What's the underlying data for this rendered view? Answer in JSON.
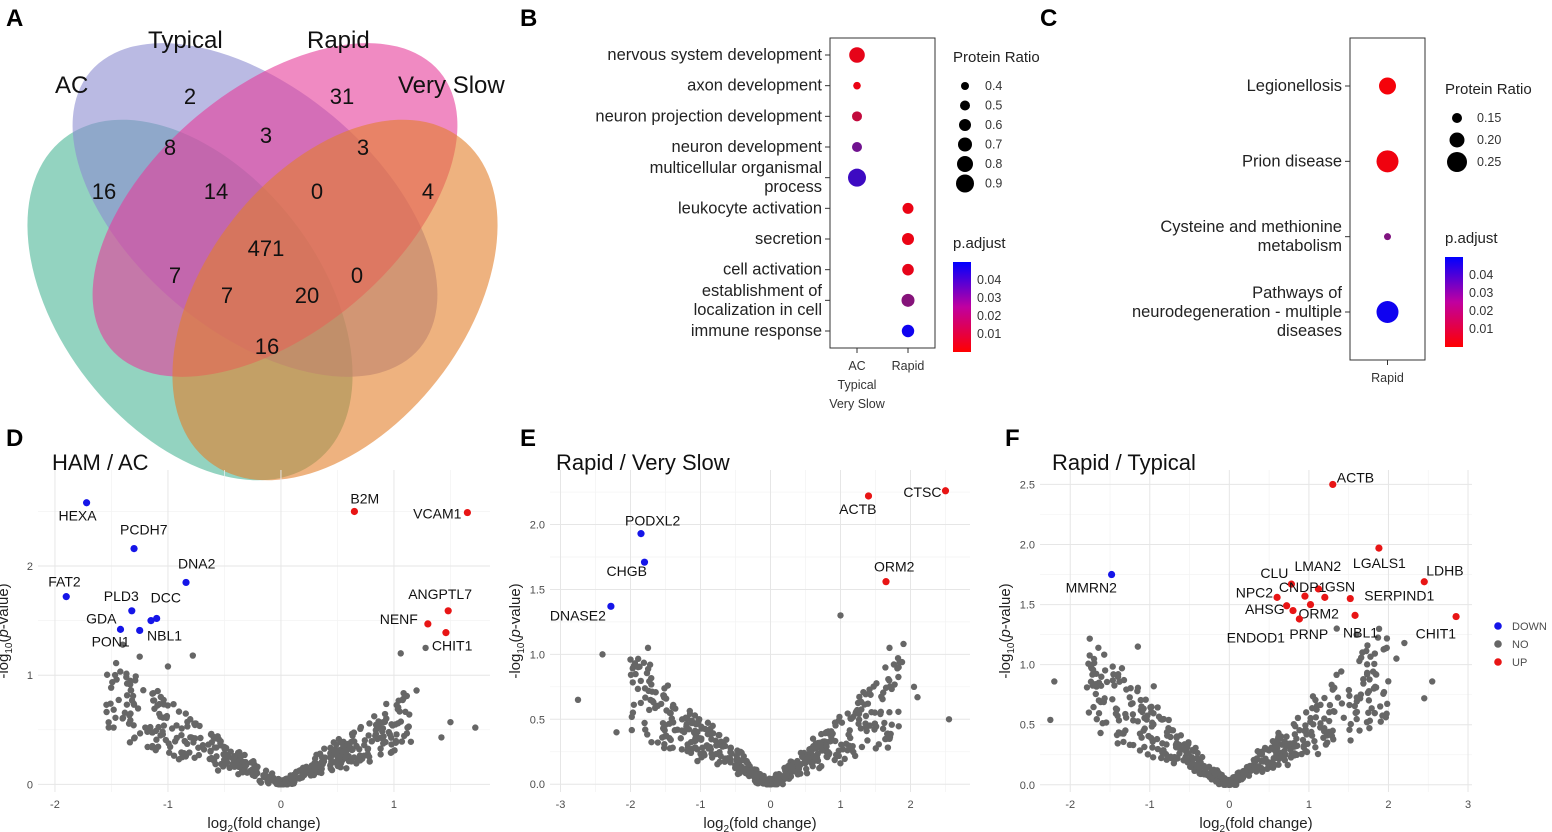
{
  "panel_labels": {
    "A": "A",
    "B": "B",
    "C": "C",
    "D": "D",
    "E": "E",
    "F": "F"
  },
  "colors": {
    "ac": "#4bb596",
    "typical": "#8c8cd0",
    "rapid": "#e63c9a",
    "very_slow": "#e27e2a",
    "down": "#1515e8",
    "up": "#e81515",
    "no": "#666666"
  },
  "venn": {
    "set_labels": {
      "ac": "AC",
      "typical": "Typical",
      "rapid": "Rapid",
      "very_slow": "Very Slow"
    },
    "regions": {
      "typical_only": "2",
      "rapid_only": "31",
      "ac_only": "16",
      "very_slow_only": "4",
      "ac_typical": "8",
      "typical_rapid": "3",
      "rapid_very_slow": "3",
      "ac_typical_rapid": "14",
      "typical_rapid_very_slow": "0",
      "all_four": "471",
      "ac_rapid": "7",
      "typical_very_slow": "0",
      "ac_rapid_very_slow": "7",
      "ac_typical_very_slow": "20",
      "ac_very_slow": "16"
    }
  },
  "chart_data": [
    {
      "panel": "B",
      "type": "dot",
      "x_categories": [
        "AC\nTypical\nVery Slow",
        "Rapid"
      ],
      "terms": [
        "nervous system development",
        "axon development",
        "neuron projection development",
        "neuron development",
        "multicellular organismal\nprocess",
        "leukocyte activation",
        "secretion",
        "cell activation",
        "establishment of\nlocalization in cell",
        "immune response"
      ],
      "points": [
        {
          "term": "nervous system development",
          "group": 0,
          "ratio": 0.78,
          "p_adjust": 0.005
        },
        {
          "term": "axon development",
          "group": 0,
          "ratio": 0.38,
          "p_adjust": 0.004
        },
        {
          "term": "neuron projection development",
          "group": 0,
          "ratio": 0.5,
          "p_adjust": 0.012
        },
        {
          "term": "neuron development",
          "group": 0,
          "ratio": 0.5,
          "p_adjust": 0.028
        },
        {
          "term": "multicellular organismal\nprocess",
          "group": 0,
          "ratio": 0.9,
          "p_adjust": 0.038
        },
        {
          "term": "leukocyte activation",
          "group": 1,
          "ratio": 0.55,
          "p_adjust": 0.004
        },
        {
          "term": "secretion",
          "group": 1,
          "ratio": 0.6,
          "p_adjust": 0.004
        },
        {
          "term": "cell activation",
          "group": 1,
          "ratio": 0.58,
          "p_adjust": 0.005
        },
        {
          "term": "establishment of\nlocalization in cell",
          "group": 1,
          "ratio": 0.65,
          "p_adjust": 0.024
        },
        {
          "term": "immune response",
          "group": 1,
          "ratio": 0.62,
          "p_adjust": 0.047
        }
      ],
      "size_legend": {
        "title": "Protein Ratio",
        "values": [
          0.4,
          0.5,
          0.6,
          0.7,
          0.8,
          0.9
        ],
        "labels": [
          "0.4",
          "0.5",
          "0.6",
          "0.7",
          "0.8",
          "0.9"
        ]
      },
      "color_legend": {
        "title": "p.adjust",
        "ticks": [
          "0.04",
          "0.03",
          "0.02",
          "0.01"
        ],
        "range": [
          0.0,
          0.05
        ]
      }
    },
    {
      "panel": "C",
      "type": "dot",
      "x_categories": [
        "Rapid"
      ],
      "terms": [
        "Legionellosis",
        "Prion disease",
        "Cysteine and methionine\nmetabolism",
        "Pathways of\nneurodegeneration - multiple\ndiseases"
      ],
      "points": [
        {
          "term": "Legionellosis",
          "group": 0,
          "ratio": 0.22,
          "p_adjust": 0.002
        },
        {
          "term": "Prion disease",
          "group": 0,
          "ratio": 0.27,
          "p_adjust": 0.003
        },
        {
          "term": "Cysteine and methionine\nmetabolism",
          "group": 0,
          "ratio": 0.12,
          "p_adjust": 0.025
        },
        {
          "term": "Pathways of\nneurodegeneration - multiple\ndiseases",
          "group": 0,
          "ratio": 0.27,
          "p_adjust": 0.047
        }
      ],
      "size_legend": {
        "title": "Protein Ratio",
        "values": [
          0.15,
          0.2,
          0.25
        ],
        "labels": [
          "0.15",
          "0.20",
          "0.25"
        ]
      },
      "color_legend": {
        "title": "p.adjust",
        "ticks": [
          "0.04",
          "0.03",
          "0.02",
          "0.01"
        ],
        "range": [
          0.0,
          0.05
        ]
      }
    },
    {
      "panel": "D",
      "type": "scatter",
      "title": "HAM / AC",
      "xlabel": "log2(fold change)",
      "ylabel": "-log10(p-value)",
      "xlim": [
        -2.15,
        1.85
      ],
      "ylim": [
        -0.07,
        2.88
      ],
      "x_ticks": [
        "-2",
        "-1",
        "0",
        "1"
      ],
      "y_ticks": [
        "0",
        "1",
        "2"
      ],
      "labeled": [
        {
          "gene": "HEXA",
          "x": -1.72,
          "y": 2.58,
          "status": "DOWN",
          "label_anchor": "end",
          "label_dx": 10,
          "label_dy": 18
        },
        {
          "gene": "PCDH7",
          "x": -1.3,
          "y": 2.16,
          "status": "DOWN",
          "label_anchor": "start",
          "label_dx": -14,
          "label_dy": -14
        },
        {
          "gene": "DNA2",
          "x": -0.84,
          "y": 1.85,
          "status": "DOWN",
          "label_anchor": "start",
          "label_dx": -8,
          "label_dy": -14
        },
        {
          "gene": "FAT2",
          "x": -1.9,
          "y": 1.72,
          "status": "DOWN",
          "label_anchor": "start",
          "label_dx": -18,
          "label_dy": -10
        },
        {
          "gene": "PLD3",
          "x": -1.32,
          "y": 1.59,
          "status": "DOWN",
          "label_anchor": "start",
          "label_dx": -28,
          "label_dy": -10
        },
        {
          "gene": "GDA",
          "x": -1.42,
          "y": 1.42,
          "status": "DOWN",
          "label_anchor": "end",
          "label_dx": -4,
          "label_dy": -6
        },
        {
          "gene": "DCC",
          "x": -1.1,
          "y": 1.52,
          "status": "DOWN",
          "label_anchor": "start",
          "label_dx": -6,
          "label_dy": -16
        },
        {
          "gene": "NBL1",
          "x": -1.15,
          "y": 1.5,
          "status": "DOWN",
          "label_anchor": "start",
          "label_dx": -4,
          "label_dy": 20
        },
        {
          "gene": "PON1",
          "x": -1.25,
          "y": 1.41,
          "status": "DOWN",
          "label_anchor": "end",
          "label_dx": -10,
          "label_dy": 16
        },
        {
          "gene": "B2M",
          "x": 0.65,
          "y": 2.5,
          "status": "UP",
          "label_anchor": "start",
          "label_dx": -4,
          "label_dy": -8
        },
        {
          "gene": "VCAM1",
          "x": 1.65,
          "y": 2.49,
          "status": "UP",
          "label_anchor": "end",
          "label_dx": -6,
          "label_dy": 6
        },
        {
          "gene": "ANGPTL7",
          "x": 1.48,
          "y": 1.59,
          "status": "UP",
          "label_anchor": "start",
          "label_dx": -40,
          "label_dy": -12
        },
        {
          "gene": "NENF",
          "x": 1.3,
          "y": 1.47,
          "status": "UP",
          "label_anchor": "end",
          "label_dx": -10,
          "label_dy": 0
        },
        {
          "gene": "CHIT1",
          "x": 1.46,
          "y": 1.39,
          "status": "UP",
          "label_anchor": "start",
          "label_dx": -14,
          "label_dy": 18
        }
      ]
    },
    {
      "panel": "E",
      "type": "scatter",
      "title": "Rapid / Very Slow",
      "xlabel": "log2(fold change)",
      "ylabel": "-log10(p-value)",
      "xlim": [
        -3.15,
        2.85
      ],
      "ylim": [
        -0.06,
        2.42
      ],
      "x_ticks": [
        "-3",
        "-2",
        "-1",
        "0",
        "1",
        "2"
      ],
      "y_ticks": [
        "0.0",
        "0.5",
        "1.0",
        "1.5",
        "2.0"
      ],
      "labeled": [
        {
          "gene": "PODXL2",
          "x": -1.85,
          "y": 1.93,
          "status": "DOWN",
          "label_anchor": "start",
          "label_dx": -16,
          "label_dy": -8
        },
        {
          "gene": "CHGB",
          "x": -1.8,
          "y": 1.71,
          "status": "DOWN",
          "label_anchor": "start",
          "label_dx": -38,
          "label_dy": 14
        },
        {
          "gene": "DNASE2",
          "x": -2.28,
          "y": 1.37,
          "status": "DOWN",
          "label_anchor": "end",
          "label_dx": -5,
          "label_dy": 14
        },
        {
          "gene": "ACTB",
          "x": 1.4,
          "y": 2.22,
          "status": "UP",
          "label_anchor": "end",
          "label_dx": 8,
          "label_dy": 18
        },
        {
          "gene": "CTSC",
          "x": 2.5,
          "y": 2.26,
          "status": "UP",
          "label_anchor": "end",
          "label_dx": -4,
          "label_dy": 6
        },
        {
          "gene": "ORM2",
          "x": 1.65,
          "y": 1.56,
          "status": "UP",
          "label_anchor": "start",
          "label_dx": -12,
          "label_dy": -10
        }
      ]
    },
    {
      "panel": "F",
      "type": "scatter",
      "title": "Rapid / Typical",
      "xlabel": "log2(fold change)",
      "ylabel": "-log10(p-value)",
      "xlim": [
        -2.38,
        3.05
      ],
      "ylim": [
        -0.06,
        2.62
      ],
      "x_ticks": [
        "-2",
        "-1",
        "0",
        "1",
        "2",
        "3"
      ],
      "y_ticks": [
        "0.0",
        "0.5",
        "1.0",
        "1.5",
        "2.0",
        "2.5"
      ],
      "labeled": [
        {
          "gene": "ACTB",
          "x": 1.3,
          "y": 2.5,
          "status": "UP",
          "label_anchor": "start",
          "label_dx": 4,
          "label_dy": -2
        },
        {
          "gene": "LGALS1",
          "x": 1.88,
          "y": 1.97,
          "status": "UP",
          "label_anchor": "start",
          "label_dx": -26,
          "label_dy": 20
        },
        {
          "gene": "LDHB",
          "x": 2.45,
          "y": 1.69,
          "status": "UP",
          "label_anchor": "start",
          "label_dx": 2,
          "label_dy": -6
        },
        {
          "gene": "CHIT1",
          "x": 2.85,
          "y": 1.4,
          "status": "UP",
          "label_anchor": "end",
          "label_dx": 0,
          "label_dy": 22
        },
        {
          "gene": "CLU",
          "x": 0.78,
          "y": 1.67,
          "status": "UP",
          "label_anchor": "end",
          "label_dx": -3,
          "label_dy": -6
        },
        {
          "gene": "LMAN2",
          "x": 1.12,
          "y": 1.63,
          "status": "UP",
          "label_anchor": "start",
          "label_dx": -24,
          "label_dy": -18
        },
        {
          "gene": "NPC2",
          "x": 0.6,
          "y": 1.56,
          "status": "UP",
          "label_anchor": "end",
          "label_dx": -4,
          "label_dy": 0
        },
        {
          "gene": "CNDP1",
          "x": 0.95,
          "y": 1.57,
          "status": "UP",
          "label_anchor": "start",
          "label_dx": -26,
          "label_dy": -4
        },
        {
          "gene": "GSN",
          "x": 1.2,
          "y": 1.56,
          "status": "UP",
          "label_anchor": "start",
          "label_dx": 0,
          "label_dy": -6
        },
        {
          "gene": "AHSG",
          "x": 0.72,
          "y": 1.49,
          "status": "UP",
          "label_anchor": "end",
          "label_dx": -2,
          "label_dy": 8
        },
        {
          "gene": "ORM2",
          "x": 1.02,
          "y": 1.5,
          "status": "UP",
          "label_anchor": "start",
          "label_dx": -12,
          "label_dy": 14
        },
        {
          "gene": "SERPIND1",
          "x": 1.52,
          "y": 1.55,
          "status": "UP",
          "label_anchor": "start",
          "label_dx": 14,
          "label_dy": 2
        },
        {
          "gene": "ENDOD1",
          "x": 0.8,
          "y": 1.45,
          "status": "UP",
          "label_anchor": "end",
          "label_dx": -8,
          "label_dy": 32
        },
        {
          "gene": "PRNP",
          "x": 0.88,
          "y": 1.38,
          "status": "UP",
          "label_anchor": "start",
          "label_dx": -10,
          "label_dy": 20
        },
        {
          "gene": "NBL1",
          "x": 1.58,
          "y": 1.41,
          "status": "UP",
          "label_anchor": "start",
          "label_dx": -12,
          "label_dy": 22
        },
        {
          "gene": "MMRN2",
          "x": -1.48,
          "y": 1.75,
          "status": "DOWN",
          "label_anchor": "start",
          "label_dx": -46,
          "label_dy": 18
        }
      ],
      "legend": {
        "DOWN": "DOWN",
        "NO": "NO",
        "UP": "UP"
      }
    }
  ]
}
